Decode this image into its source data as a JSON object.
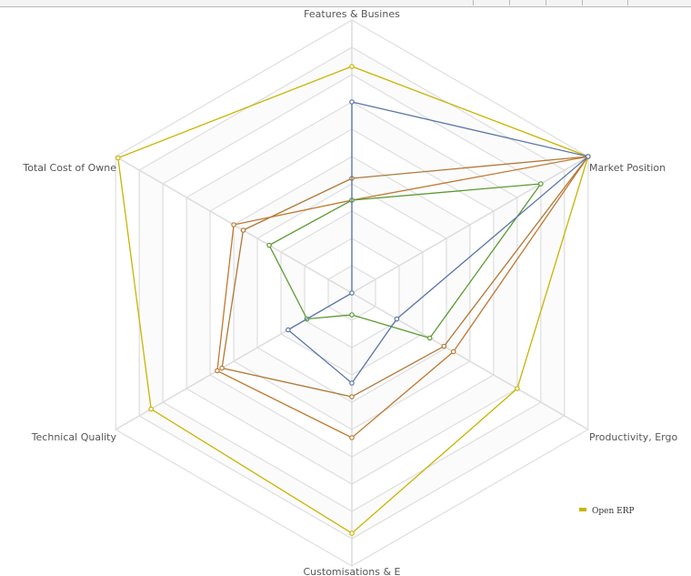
{
  "chart_data": {
    "type": "radar",
    "axes": [
      "Features & Busines",
      "Market Position",
      "Productivity, Ergo",
      "Customisations & E",
      "Technical Quality",
      "Total Cost of Owne"
    ],
    "rlim": [
      0,
      10
    ],
    "grid": true,
    "legend_position": "bottom-right",
    "series": [
      {
        "name": "Open ERP",
        "color": "#c8b400",
        "values": [
          8.3,
          10.0,
          7.0,
          8.8,
          8.5,
          9.9
        ]
      },
      {
        "color": "#c07830",
        "values": [
          3.4,
          10.0,
          4.3,
          5.3,
          5.7,
          5.0
        ]
      },
      {
        "color": "#b07838",
        "values": [
          4.2,
          10.0,
          3.9,
          3.8,
          5.5,
          4.6
        ]
      },
      {
        "color": "#5a9a30",
        "values": [
          3.4,
          8.0,
          3.3,
          0.8,
          1.9,
          3.5
        ]
      },
      {
        "color": "#5a76a8",
        "values": [
          7.0,
          10.0,
          1.9,
          3.3,
          2.7,
          0.0
        ]
      }
    ]
  }
}
